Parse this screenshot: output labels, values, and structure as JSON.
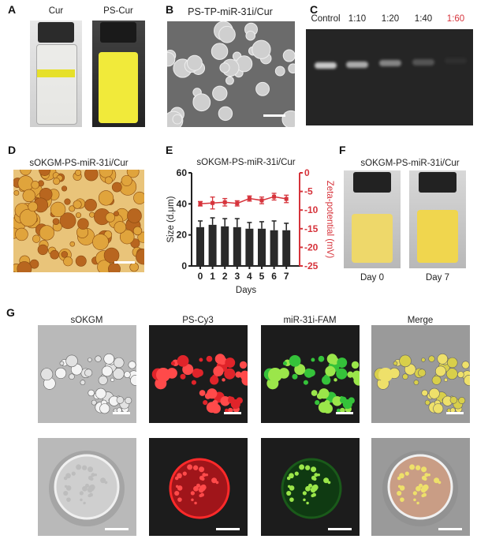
{
  "panels": {
    "A": {
      "label": "A",
      "vials": [
        "Cur",
        "PS-Cur"
      ]
    },
    "B": {
      "label": "B",
      "title": "PS-TP-miR-31i/Cur"
    },
    "C": {
      "label": "C",
      "lanes": [
        "Control",
        "1:10",
        "1:20",
        "1:40",
        "1:60"
      ],
      "highlight_color": "#d6333b",
      "band_intensity": [
        0.85,
        0.7,
        0.5,
        0.25,
        0.05
      ]
    },
    "D": {
      "label": "D",
      "title": "sOKGM-PS-miR-31i/Cur"
    },
    "E": {
      "label": "E"
    },
    "F": {
      "label": "F",
      "title": "sOKGM-PS-miR-31i/Cur",
      "captions": [
        "Day 0",
        "Day 7"
      ]
    },
    "G": {
      "label": "G",
      "columns": [
        "sOKGM",
        "PS-Cy3",
        "miR-31i-FAM",
        "Merge"
      ]
    }
  },
  "chart_data": {
    "type": "bar+line",
    "title": "sOKGM-PS-miR-31i/Cur",
    "xlabel": "Days",
    "ylabel": "Size  (d.μm)",
    "y2label": "Zeta-potential  (mV)",
    "categories": [
      "0",
      "1",
      "2",
      "3",
      "4",
      "5",
      "6",
      "7"
    ],
    "ylim": [
      0,
      60
    ],
    "yticks": [
      "0",
      "20",
      "40",
      "60"
    ],
    "y2lim": [
      -25,
      0
    ],
    "y2ticks": [
      "-25",
      "-20",
      "-15",
      "-10",
      "-5",
      "0"
    ],
    "series": [
      {
        "axis": "left",
        "kind": "bar",
        "color": "#2a2a2a",
        "values": [
          25,
          26.5,
          25.5,
          25,
          24,
          24,
          23,
          23
        ],
        "errors": [
          4,
          4.5,
          5,
          5.5,
          4,
          4.5,
          6,
          4.5
        ]
      },
      {
        "axis": "right",
        "kind": "line",
        "color": "#d6333b",
        "values": [
          -8.3,
          -8.1,
          -7.9,
          -8.2,
          -6.9,
          -7.4,
          -6.4,
          -7.0
        ],
        "errors": [
          0.6,
          1.6,
          1.0,
          0.7,
          0.7,
          0.9,
          0.9,
          1.0
        ]
      }
    ]
  }
}
